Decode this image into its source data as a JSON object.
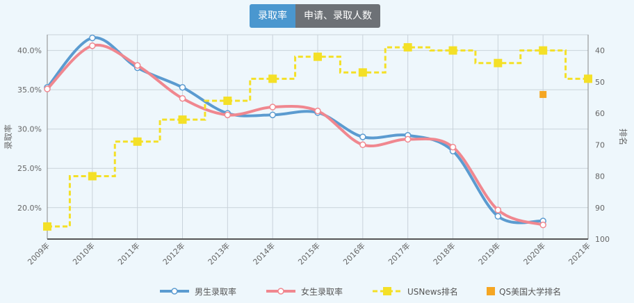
{
  "tabs": [
    {
      "label": "录取率",
      "active": true
    },
    {
      "label": "申请、录取人数",
      "active": false
    }
  ],
  "chart_data": {
    "type": "line",
    "x": [
      "2009年",
      "2010年",
      "2011年",
      "2012年",
      "2013年",
      "2014年",
      "2015年",
      "2016年",
      "2017年",
      "2018年",
      "2019年",
      "2020年",
      "2021年"
    ],
    "y_left": {
      "label": "录取率",
      "ticks": [
        "20.0%",
        "25.0%",
        "30.0%",
        "35.0%",
        "40.0%"
      ],
      "range": [
        16,
        42
      ]
    },
    "y_right": {
      "label": "排名",
      "ticks": [
        "40",
        "50",
        "60",
        "70",
        "80",
        "90",
        "100"
      ],
      "range": [
        35,
        100
      ],
      "inverted": true
    },
    "series": [
      {
        "name": "男生录取率",
        "axis": "left",
        "color": "#5b9bd0",
        "style": "smooth",
        "values": [
          35.3,
          41.6,
          37.8,
          35.3,
          32.0,
          31.8,
          32.1,
          29.0,
          29.2,
          27.2,
          18.9,
          18.3,
          null
        ]
      },
      {
        "name": "女生录取率",
        "axis": "left",
        "color": "#f0878f",
        "style": "smooth",
        "values": [
          35.1,
          40.6,
          38.1,
          33.9,
          31.8,
          32.8,
          32.3,
          28.0,
          28.7,
          27.7,
          19.7,
          17.8,
          null
        ]
      },
      {
        "name": "USNews排名",
        "axis": "right",
        "color": "#f4e027",
        "style": "step-dashed",
        "values": [
          96,
          80,
          69,
          62,
          56,
          49,
          42,
          47,
          39,
          40,
          44,
          40,
          49
        ]
      },
      {
        "name": "QS美国大学排名",
        "axis": "right",
        "color": "#f5a623",
        "style": "marker-only",
        "values": [
          null,
          null,
          null,
          null,
          null,
          null,
          null,
          null,
          null,
          null,
          null,
          54,
          null
        ]
      }
    ],
    "grid": true,
    "legend_position": "bottom"
  }
}
